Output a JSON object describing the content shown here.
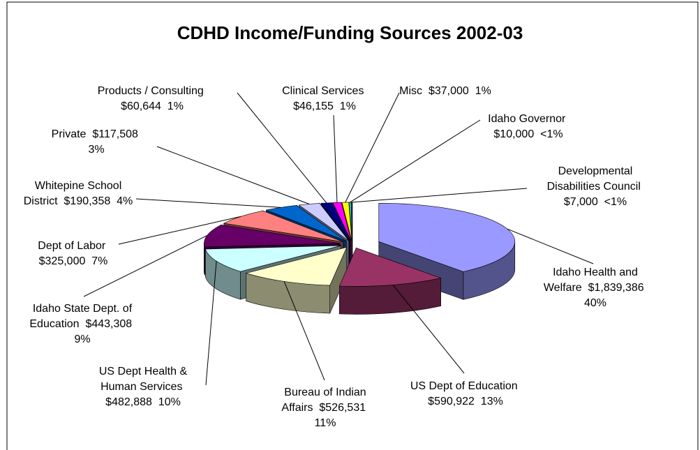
{
  "chart_data": {
    "type": "pie3d",
    "title": "CDHD Income/Funding Sources 2002-03",
    "categories": [
      "Idaho Health and Welfare",
      "US Dept of Education",
      "Bureau of Indian Affairs",
      "US Dept Health & Human Services",
      "Idaho State Dept. of Education",
      "Dept of Labor",
      "Whitepine School District",
      "Private",
      "Products / Consulting",
      "Clinical Services",
      "Misc",
      "Idaho Governor",
      "Developmental Disabilities Council"
    ],
    "values": [
      1839386,
      590922,
      526531,
      482888,
      443308,
      325000,
      190358,
      117508,
      60644,
      46155,
      37000,
      10000,
      7000
    ],
    "value_labels": [
      "$1,839,386",
      "$590,922",
      "$526,531",
      "$482,888",
      "$443,308",
      "$325,000",
      "$190,358",
      "$117,508",
      "$60,644",
      "$46,155",
      "$37,000",
      "$10,000",
      "$7,000"
    ],
    "percent_labels": [
      "40%",
      "13%",
      "11%",
      "10%",
      "9%",
      "7%",
      "4%",
      "3%",
      "1%",
      "1%",
      "1%",
      "<1%",
      "<1%"
    ],
    "colors": [
      "#9999ff",
      "#993366",
      "#ffffcc",
      "#ccffff",
      "#660066",
      "#ff8080",
      "#0066cc",
      "#ccccff",
      "#000080",
      "#ff00ff",
      "#ffff00",
      "#00ffff",
      "#800080"
    ]
  }
}
